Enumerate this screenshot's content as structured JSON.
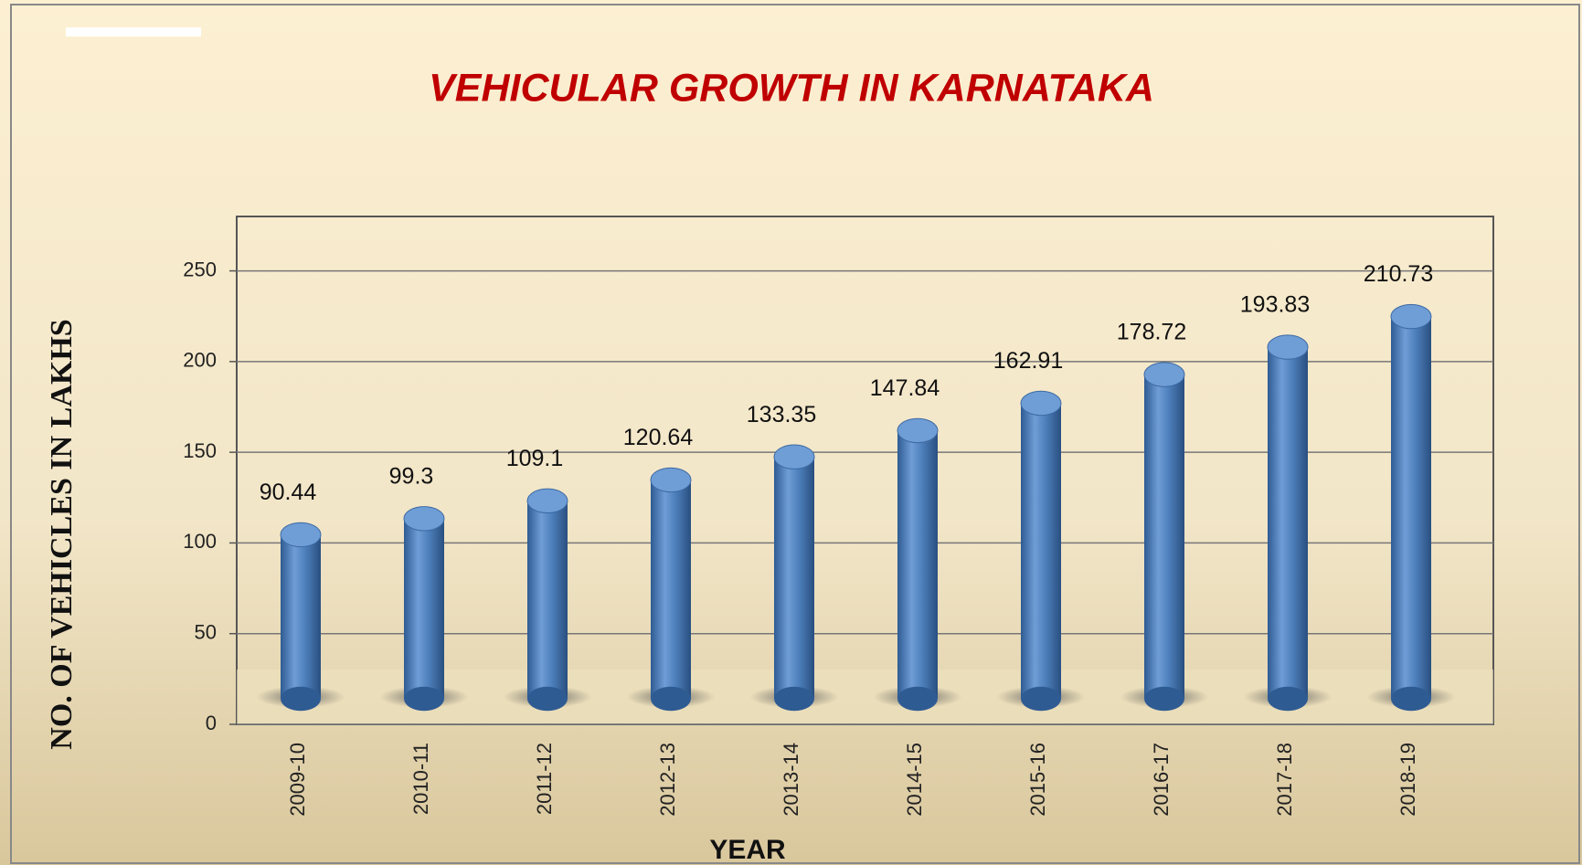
{
  "chart_data": {
    "type": "bar",
    "title": "VEHICULAR  GROWTH  IN  KARNATAKA",
    "x_label": "YEAR",
    "y_label": "NO. OF VEHICLES IN LAKHS",
    "categories": [
      "2009-10",
      "2010-11",
      "2011-12",
      "2012-13",
      "2013-14",
      "2014-15",
      "2015-16",
      "2016-17",
      "2017-18",
      "2018-19"
    ],
    "values": [
      90.44,
      99.3,
      109.1,
      120.64,
      133.35,
      147.84,
      162.91,
      178.72,
      193.83,
      210.73
    ],
    "color": "#4f81bd",
    "ylim": [
      0,
      280
    ],
    "yticks": [
      0,
      50,
      100,
      150,
      200,
      250
    ],
    "grid": true
  }
}
